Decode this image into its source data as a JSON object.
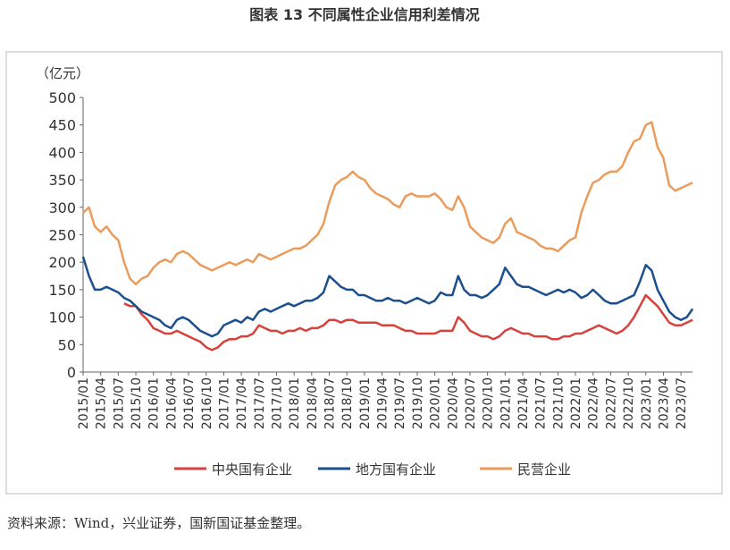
{
  "chart_data": {
    "type": "line",
    "title": "图表 13 不同属性企业信用利差情况",
    "y_unit": "（亿元）",
    "source": "资料来源：Wind，兴业证券，国新国证基金整理。",
    "categories": [
      "2015/01",
      null,
      null,
      "2015/04",
      null,
      null,
      "2015/07",
      null,
      null,
      "2015/10",
      null,
      null,
      "2016/01",
      null,
      null,
      "2016/04",
      null,
      null,
      "2016/07",
      null,
      null,
      "2016/10",
      null,
      null,
      "2017/01",
      null,
      null,
      "2017/04",
      null,
      null,
      "2017/07",
      null,
      null,
      "2017/10",
      null,
      null,
      "2018/01",
      null,
      null,
      "2018/04",
      null,
      null,
      "2018/07",
      null,
      null,
      "2018/10",
      null,
      null,
      "2019/01",
      null,
      null,
      "2019/04",
      null,
      null,
      "2019/07",
      null,
      null,
      "2019/10",
      null,
      null,
      "2020/01",
      null,
      null,
      "2020/04",
      null,
      null,
      "2020/07",
      null,
      null,
      "2020/10",
      null,
      null,
      "2021/01",
      null,
      null,
      "2021/04",
      null,
      null,
      "2021/07",
      null,
      null,
      "2021/10",
      null,
      null,
      "2022/01",
      null,
      null,
      "2022/04",
      null,
      null,
      "2022/07",
      null,
      null,
      "2022/10",
      null,
      null,
      "2023/01",
      null,
      null,
      "2023/04",
      null,
      null,
      "2023/07",
      null,
      null
    ],
    "series": [
      {
        "name": "中央国有企业",
        "color": "#d6423c",
        "values": [
          null,
          null,
          null,
          null,
          null,
          null,
          null,
          125,
          120,
          120,
          105,
          95,
          80,
          75,
          70,
          70,
          75,
          70,
          65,
          60,
          55,
          45,
          40,
          45,
          55,
          60,
          60,
          65,
          65,
          70,
          85,
          80,
          75,
          75,
          70,
          75,
          75,
          80,
          75,
          80,
          80,
          85,
          95,
          95,
          90,
          95,
          95,
          90,
          90,
          90,
          90,
          85,
          85,
          85,
          80,
          75,
          75,
          70,
          70,
          70,
          70,
          75,
          75,
          75,
          100,
          90,
          75,
          70,
          65,
          65,
          60,
          65,
          75,
          80,
          75,
          70,
          70,
          65,
          65,
          65,
          60,
          60,
          65,
          65,
          70,
          70,
          75,
          80,
          85,
          80,
          75,
          70,
          75,
          85,
          100,
          120,
          140,
          130,
          120,
          105,
          90,
          85,
          85,
          90,
          95
        ]
      },
      {
        "name": "地方国有企业",
        "color": "#1c4f8e",
        "values": [
          210,
          175,
          150,
          150,
          155,
          150,
          145,
          135,
          130,
          120,
          110,
          105,
          100,
          95,
          85,
          80,
          95,
          100,
          95,
          85,
          75,
          70,
          65,
          70,
          85,
          90,
          95,
          90,
          100,
          95,
          110,
          115,
          110,
          115,
          120,
          125,
          120,
          125,
          130,
          130,
          135,
          145,
          175,
          165,
          155,
          150,
          150,
          140,
          140,
          135,
          130,
          130,
          135,
          130,
          130,
          125,
          130,
          135,
          130,
          125,
          130,
          145,
          140,
          140,
          175,
          150,
          140,
          140,
          135,
          140,
          150,
          160,
          190,
          175,
          160,
          155,
          155,
          150,
          145,
          140,
          145,
          150,
          145,
          150,
          145,
          135,
          140,
          150,
          140,
          130,
          125,
          125,
          130,
          135,
          140,
          165,
          195,
          185,
          150,
          130,
          110,
          100,
          95,
          100,
          115
        ]
      },
      {
        "name": "民营企业",
        "color": "#eb9c5c",
        "values": [
          290,
          300,
          265,
          255,
          265,
          250,
          240,
          200,
          170,
          160,
          170,
          175,
          190,
          200,
          205,
          200,
          215,
          220,
          215,
          205,
          195,
          190,
          185,
          190,
          195,
          200,
          195,
          200,
          205,
          200,
          215,
          210,
          205,
          210,
          215,
          220,
          225,
          225,
          230,
          240,
          250,
          270,
          310,
          340,
          350,
          355,
          365,
          355,
          350,
          335,
          325,
          320,
          315,
          305,
          300,
          320,
          325,
          320,
          320,
          320,
          325,
          315,
          300,
          295,
          320,
          300,
          265,
          255,
          245,
          240,
          235,
          245,
          270,
          280,
          255,
          250,
          245,
          240,
          230,
          225,
          225,
          220,
          230,
          240,
          245,
          290,
          320,
          345,
          350,
          360,
          365,
          365,
          375,
          400,
          420,
          425,
          450,
          455,
          410,
          390,
          340,
          330,
          335,
          340,
          345
        ]
      }
    ],
    "ylim": [
      0,
      500
    ],
    "yticks": [
      0,
      50,
      100,
      150,
      200,
      250,
      300,
      350,
      400,
      450,
      500
    ],
    "legend": "bottom"
  }
}
